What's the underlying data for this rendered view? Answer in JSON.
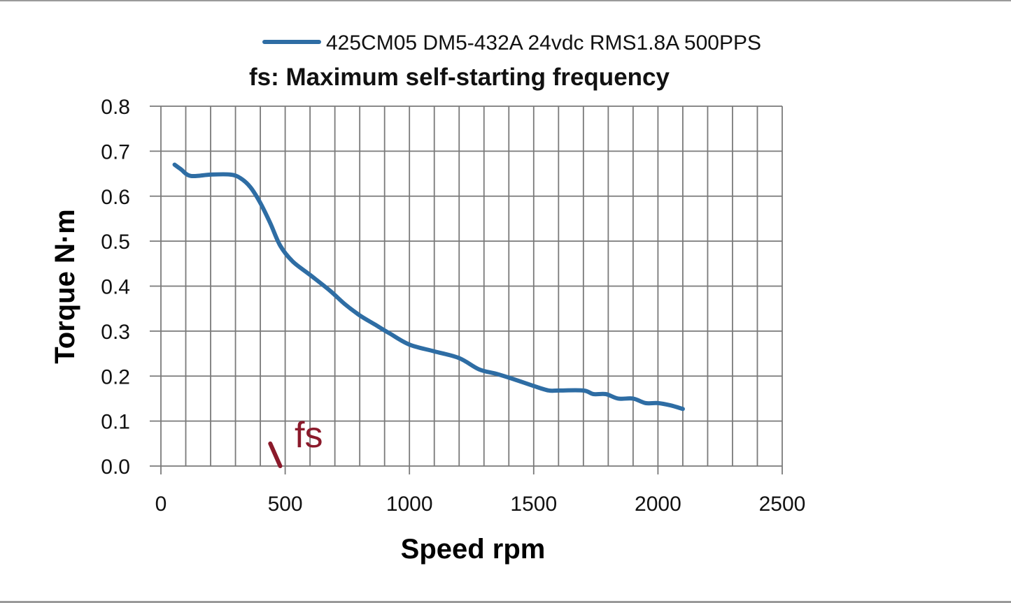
{
  "chart_data": {
    "type": "line",
    "subtitle": "fs: Maximum self-starting frequency",
    "xlabel": "Speed rpm",
    "ylabel": "Torque N·m",
    "xlim": [
      0,
      2500
    ],
    "ylim": [
      0,
      0.8
    ],
    "x_ticks": [
      "0",
      "500",
      "1000",
      "1500",
      "2000",
      "2500"
    ],
    "x_tick_values": [
      0,
      500,
      1000,
      1500,
      2000,
      2500
    ],
    "y_ticks": [
      "0.0",
      "0.1",
      "0.2",
      "0.3",
      "0.4",
      "0.5",
      "0.6",
      "0.7",
      "0.8"
    ],
    "y_tick_values": [
      0,
      0.1,
      0.2,
      0.3,
      0.4,
      0.5,
      0.6,
      0.7,
      0.8
    ],
    "grid": true,
    "minor_x_step": 100,
    "legend_position": "top",
    "series": [
      {
        "name": "425CM05 DM5-432A 24vdc RMS1.8A 500PPS",
        "color": "#2e6da4",
        "x": [
          55,
          80,
          120,
          200,
          280,
          320,
          360,
          400,
          440,
          480,
          530,
          600,
          680,
          740,
          800,
          860,
          920,
          1000,
          1100,
          1200,
          1280,
          1350,
          1420,
          1500,
          1560,
          1600,
          1700,
          1740,
          1790,
          1840,
          1900,
          1950,
          2000,
          2050,
          2100
        ],
        "y": [
          0.67,
          0.66,
          0.645,
          0.648,
          0.648,
          0.64,
          0.62,
          0.585,
          0.54,
          0.49,
          0.455,
          0.425,
          0.39,
          0.36,
          0.335,
          0.315,
          0.295,
          0.27,
          0.255,
          0.24,
          0.215,
          0.205,
          0.193,
          0.178,
          0.168,
          0.168,
          0.168,
          0.16,
          0.16,
          0.15,
          0.15,
          0.14,
          0.14,
          0.135,
          0.127
        ]
      }
    ],
    "annotations": [
      {
        "text": "fs",
        "color": "#8b1a2b"
      }
    ]
  }
}
